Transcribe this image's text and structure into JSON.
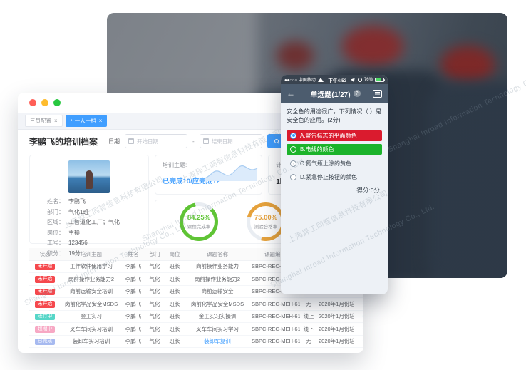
{
  "window": {
    "tabs": [
      {
        "label": "三员配置",
        "close": "×",
        "active": false
      },
      {
        "dot": "●",
        "label": "一人一档",
        "close": "×",
        "active": true
      }
    ],
    "toolbar": {
      "title": "李鹏飞的培训档案",
      "date_label": "日期",
      "start_placeholder": "开始日期",
      "separator": "-",
      "end_placeholder": "结束日期",
      "search_label": "查询"
    },
    "profile": {
      "rows": [
        {
          "label": "姓名：",
          "value": "李鹏飞"
        },
        {
          "label": "部门：",
          "value": "气化1班"
        },
        {
          "label": "区域：",
          "value": "工智道化工厂；气化"
        },
        {
          "label": "岗位：",
          "value": "主操"
        },
        {
          "label": "工号：",
          "value": "123456"
        },
        {
          "label": "积分：",
          "value": "19分"
        }
      ]
    },
    "summary": {
      "topic_label": "培训主题:",
      "topic_value": "已完成10/应完成12",
      "duration_label": "计划学习时长",
      "duration_value": "1时34分"
    },
    "donuts": [
      {
        "value": "84.25%",
        "pct": 84.25,
        "label": "课程完成率",
        "color": "#5fc435"
      },
      {
        "value": "75.00%",
        "pct": 75.0,
        "label": "测验合格率",
        "color": "#e6a23c"
      }
    ],
    "table": {
      "headers": [
        "状态",
        "培训主题",
        "姓名",
        "部门",
        "岗位",
        "课题名称",
        "课题编号",
        "培训方式",
        "培训计划",
        "操作"
      ],
      "rows": [
        {
          "status": "未开始",
          "status_color": "red",
          "topic": "工作软件使用学习",
          "name": "李鹏飞",
          "dept": "气化",
          "post": "班长",
          "course": "岗前操作业务能力",
          "course_link": false,
          "code": "SBPC-REC-MEH-617",
          "mode": "无",
          "plan": "2020年1月份培训计划",
          "action": "查看"
        },
        {
          "status": "未开始",
          "status_color": "red",
          "topic": "岗前操作业务能力2",
          "name": "李鹏飞",
          "dept": "气化",
          "post": "班长",
          "course": "岗前操作业务能力2",
          "course_link": false,
          "code": "SBPC-REC-MEH-617",
          "mode": "线上",
          "plan": "2020年1月份培训计划",
          "action": "查看"
        },
        {
          "status": "未开始",
          "status_color": "red",
          "topic": "岗前运输安全培训",
          "name": "李鹏飞",
          "dept": "气化",
          "post": "班长",
          "course": "岗前运输安全",
          "course_link": false,
          "code": "SBPC-REC-MEH-617",
          "mode": "线下",
          "plan": "2020年1月份培训计划",
          "action": "查看"
        },
        {
          "status": "未开始",
          "status_color": "red",
          "topic": "岗前化学品安全MSDS",
          "name": "李鹏飞",
          "dept": "气化",
          "post": "班长",
          "course": "岗前化学品安全MSDS",
          "course_link": false,
          "code": "SBPC-REC-MEH-617",
          "mode": "无",
          "plan": "2020年1月份培训计划",
          "action": "查看"
        },
        {
          "status": "进行中",
          "status_color": "teal",
          "topic": "金工实习",
          "name": "李鹏飞",
          "dept": "气化",
          "post": "班长",
          "course": "金工实习实操课",
          "course_link": false,
          "code": "SBPC-REC-MEH-617",
          "mode": "线上",
          "plan": "2020年1月份培训计划",
          "action": "查看"
        },
        {
          "status": "超期中",
          "status_color": "pink",
          "topic": "叉车车间实习培训",
          "name": "李鹏飞",
          "dept": "气化",
          "post": "班长",
          "course": "叉车车间实习学习",
          "course_link": false,
          "code": "SBPC-REC-MEH-617",
          "mode": "线下",
          "plan": "2020年1月份培训计划",
          "action": "查看"
        },
        {
          "status": "已完成",
          "status_color": "blue",
          "topic": "装卸车实习培训",
          "name": "李鹏飞",
          "dept": "气化",
          "post": "班长",
          "course": "装卸车复训",
          "course_link": true,
          "code": "SBPC-REC-MEH-617",
          "mode": "无",
          "plan": "2020年1月份培训计划",
          "action": "查看"
        }
      ]
    }
  },
  "phone": {
    "status_bar": {
      "carrier": "●●○○○ 中国移动",
      "time": "下午4:53",
      "battery": "76%"
    },
    "nav": {
      "back_icon": "←",
      "title": "单选题(1/27)",
      "help": "?"
    },
    "question": "安全色的用途很广，下列情况（ ）是安全色的应用。(2分)",
    "options": [
      {
        "text": "A.警告标志的平面颜色",
        "state": "wrong-selected"
      },
      {
        "text": "B.电线的颜色",
        "state": "correct"
      },
      {
        "text": "C.氮气瓶上涂的黄色",
        "state": "normal"
      },
      {
        "text": "D.紧急停止按钮的颜色",
        "state": "normal"
      }
    ],
    "score": "得分:0分"
  },
  "watermark": {
    "cn": "上海异工同智信息科技有限公司",
    "en": "Shanghai Inroad Information Technology Co., Ltd."
  },
  "colors": {
    "accent": "#409eff",
    "wrong_red": "#da1b2e",
    "correct_green": "#1cb32b",
    "donut_green": "#5fc435",
    "donut_orange": "#e6a23c",
    "badge_red": "#f5484d",
    "badge_teal": "#56d6c8",
    "badge_pink": "#f7a8c4",
    "badge_blue": "#a7baf0"
  }
}
